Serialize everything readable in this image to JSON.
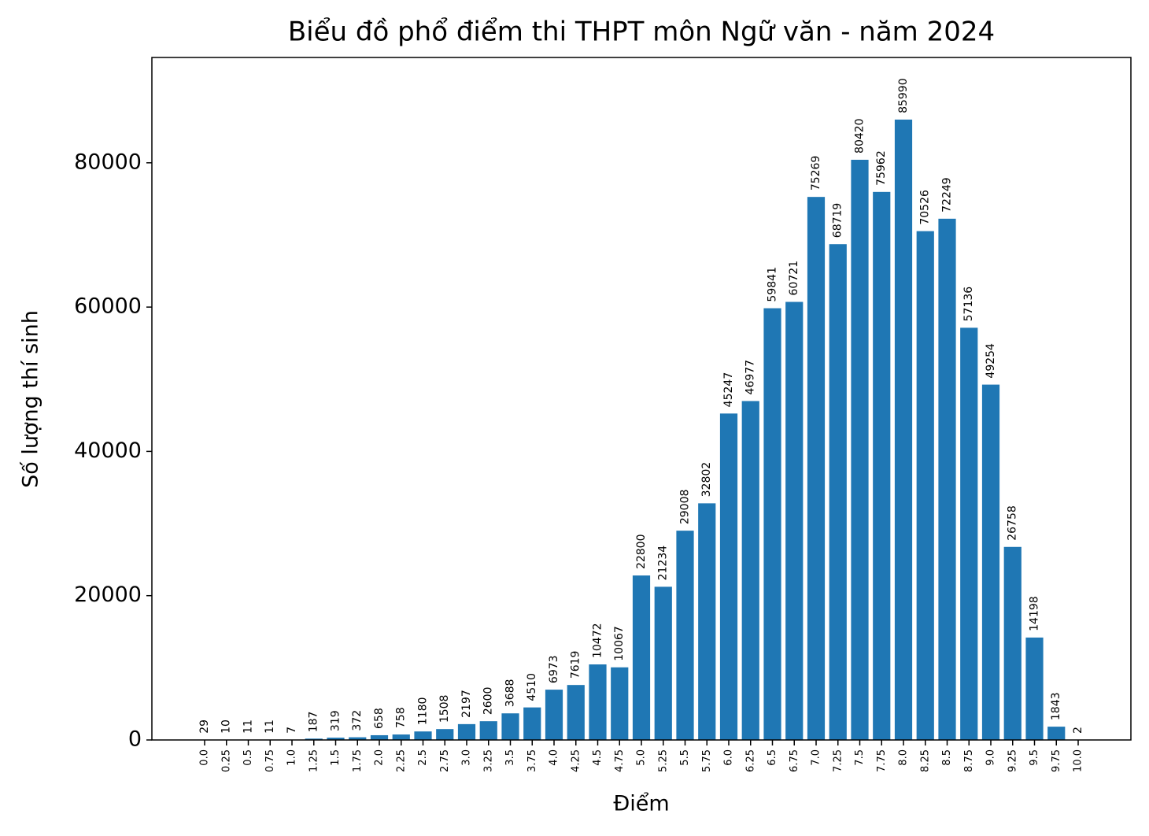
{
  "chart_data": {
    "type": "bar",
    "title": "Biểu đồ phổ điểm thi THPT môn Ngữ văn - năm 2024",
    "x_label": "Điểm",
    "y_label": "Số lượng thí sinh",
    "categories": [
      "0.0",
      "0.25",
      "0.5",
      "0.75",
      "1.0",
      "1.25",
      "1.5",
      "1.75",
      "2.0",
      "2.25",
      "2.5",
      "2.75",
      "3.0",
      "3.25",
      "3.5",
      "3.75",
      "4.0",
      "4.25",
      "4.5",
      "4.75",
      "5.0",
      "5.25",
      "5.5",
      "5.75",
      "6.0",
      "6.25",
      "6.5",
      "6.75",
      "7.0",
      "7.25",
      "7.5",
      "7.75",
      "8.0",
      "8.25",
      "8.5",
      "8.75",
      "9.0",
      "9.25",
      "9.5",
      "9.75",
      "10.0"
    ],
    "values": [
      29,
      10,
      11,
      11,
      7,
      187,
      319,
      372,
      658,
      758,
      1180,
      1508,
      2197,
      2600,
      3688,
      4510,
      6973,
      7619,
      10472,
      10067,
      22800,
      21234,
      29008,
      32802,
      45247,
      46977,
      59841,
      60721,
      75269,
      68719,
      80420,
      75962,
      85990,
      70526,
      72249,
      57136,
      49254,
      26758,
      14198,
      1843,
      2
    ],
    "color": "#1f77b4",
    "ylim": [
      0,
      94600
    ],
    "yticks": [
      0,
      20000,
      40000,
      60000,
      80000
    ],
    "grid": false
  }
}
